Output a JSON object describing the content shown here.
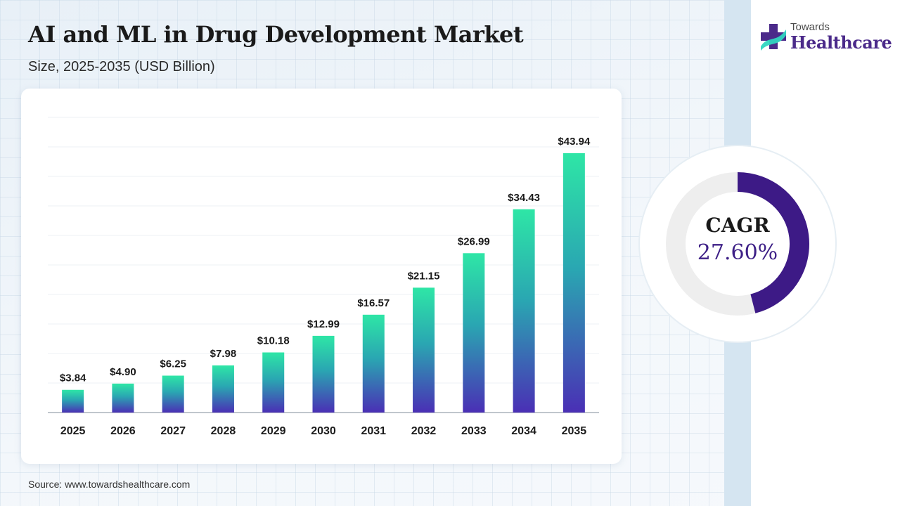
{
  "header": {
    "title": "AI and ML in Drug Development Market",
    "subtitle": "Size, 2025-2035 (USD Billion)"
  },
  "brand": {
    "line1": "Towards",
    "line2": "Healthcare",
    "icon": "medical-cross-logo-icon",
    "colors": {
      "primary": "#4b2a8a",
      "accent": "#2fd6c0"
    }
  },
  "source": "Source: www.towardshealthcare.com",
  "cagr": {
    "label": "CAGR",
    "value": "27.60%",
    "ring_fill_fraction": 0.46,
    "ring_color": "#3d1a86",
    "track_color": "#eeeeee"
  },
  "chart_data": {
    "type": "bar",
    "categories": [
      "2025",
      "2026",
      "2027",
      "2028",
      "2029",
      "2030",
      "2031",
      "2032",
      "2033",
      "2034",
      "2035"
    ],
    "values": [
      3.84,
      4.9,
      6.25,
      7.98,
      10.18,
      12.99,
      16.57,
      21.15,
      26.99,
      34.43,
      43.94
    ],
    "data_labels": [
      "$3.84",
      "$4.90",
      "$6.25",
      "$7.98",
      "$10.18",
      "$12.99",
      "$16.57",
      "$21.15",
      "$26.99",
      "$34.43",
      "$43.94"
    ],
    "title": "AI and ML in Drug Development Market",
    "subtitle": "Size, 2025-2035 (USD Billion)",
    "xlabel": "",
    "ylabel": "",
    "ylim": [
      0,
      50
    ],
    "grid": true,
    "legend": "none",
    "bar_gradient": {
      "top": "#2ee6a6",
      "middle": "#2aa6b2",
      "bottom": "#4a2fb5"
    }
  }
}
